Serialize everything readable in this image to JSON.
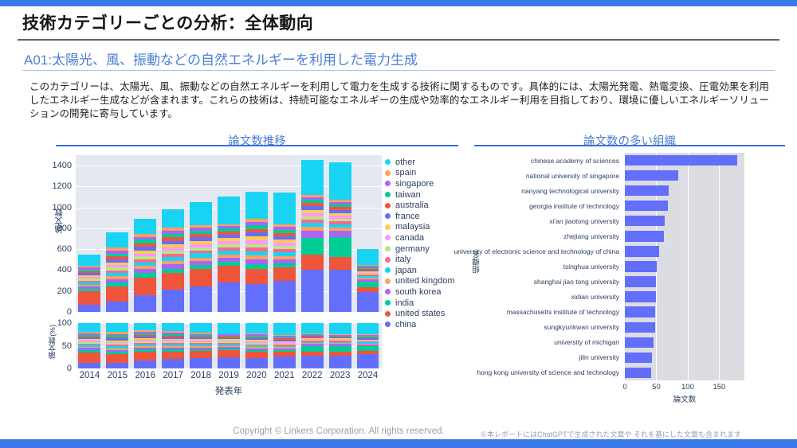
{
  "page": {
    "title": "技術カテゴリーごとの分析：全体動向",
    "section_heading": "A01:太陽光、風、振動などの自然エネルギーを利用した電力生成",
    "description": "このカテゴリーは、太陽光、風、振動などの自然エネルギーを利用して電力を生成する技術に関するものです。具体的には、太陽光発電、熱電変換、圧電効果を利用したエネルギー生成などが含まれます。これらの技術は、持続可能なエネルギーの生成や効率的なエネルギー利用を目指しており、環境に優しいエネルギーソリューションの開発に寄与しています。",
    "accent_color": "#3B79E9",
    "heading_color": "#4A7FD4"
  },
  "footer": {
    "copyright": "Copyright © Linkers Corporation. All rights reserved.",
    "note": "※本レポートにはChatGPTで生成された文章や それを基にした文章も含まれます"
  },
  "chart_data": [
    {
      "type": "bar",
      "mode": "stacked",
      "title": "論文数推移",
      "xlabel": "発表年",
      "ylabel": "論文数",
      "ylim": [
        0,
        1500
      ],
      "yticks": [
        0,
        200,
        400,
        600,
        800,
        1000,
        1200,
        1400
      ],
      "grid": true,
      "legend_position": "right",
      "categories": [
        "2014",
        "2015",
        "2016",
        "2017",
        "2018",
        "2019",
        "2020",
        "2021",
        "2022",
        "2023",
        "2024"
      ],
      "series": [
        {
          "name": "other",
          "color": "#19D3F3",
          "values": [
            105,
            150,
            140,
            170,
            225,
            265,
            260,
            300,
            335,
            355,
            150
          ]
        },
        {
          "name": "spain",
          "color": "#FFA15A",
          "values": [
            15,
            30,
            30,
            30,
            25,
            15,
            30,
            25,
            20,
            20,
            10
          ]
        },
        {
          "name": "singapore",
          "color": "#AB63FA",
          "values": [
            20,
            25,
            30,
            30,
            30,
            25,
            30,
            30,
            25,
            25,
            10
          ]
        },
        {
          "name": "taiwan",
          "color": "#00CC96",
          "values": [
            20,
            30,
            35,
            35,
            30,
            30,
            35,
            30,
            30,
            25,
            15
          ]
        },
        {
          "name": "australia",
          "color": "#EF553B",
          "values": [
            15,
            25,
            30,
            35,
            30,
            30,
            35,
            30,
            35,
            30,
            15
          ]
        },
        {
          "name": "france",
          "color": "#636EFA",
          "values": [
            20,
            30,
            35,
            35,
            35,
            30,
            40,
            35,
            35,
            30,
            15
          ]
        },
        {
          "name": "malaysia",
          "color": "#FECB52",
          "values": [
            15,
            25,
            30,
            30,
            30,
            30,
            35,
            30,
            30,
            25,
            10
          ]
        },
        {
          "name": "canada",
          "color": "#FF97FF",
          "values": [
            15,
            25,
            25,
            30,
            30,
            30,
            35,
            30,
            30,
            25,
            10
          ]
        },
        {
          "name": "germany",
          "color": "#B6E880",
          "values": [
            20,
            25,
            30,
            30,
            30,
            30,
            35,
            30,
            30,
            25,
            10
          ]
        },
        {
          "name": "italy",
          "color": "#FF6692",
          "values": [
            15,
            25,
            30,
            30,
            30,
            30,
            35,
            30,
            35,
            30,
            10
          ]
        },
        {
          "name": "japan",
          "color": "#19D3F3",
          "values": [
            25,
            35,
            35,
            40,
            40,
            40,
            40,
            35,
            35,
            30,
            15
          ]
        },
        {
          "name": "united kingdom",
          "color": "#FFA15A",
          "values": [
            15,
            25,
            30,
            30,
            30,
            30,
            35,
            30,
            35,
            30,
            15
          ]
        },
        {
          "name": "south korea",
          "color": "#AB63FA",
          "values": [
            25,
            35,
            40,
            40,
            40,
            40,
            45,
            40,
            70,
            65,
            25
          ]
        },
        {
          "name": "india",
          "color": "#00CC96",
          "values": [
            25,
            35,
            40,
            45,
            40,
            40,
            45,
            40,
            165,
            190,
            55
          ]
        },
        {
          "name": "united states",
          "color": "#EF553B",
          "values": [
            130,
            145,
            170,
            160,
            170,
            160,
            145,
            125,
            145,
            125,
            45
          ]
        },
        {
          "name": "china",
          "color": "#636EFA",
          "values": [
            65,
            100,
            160,
            210,
            240,
            280,
            270,
            300,
            400,
            400,
            190
          ]
        }
      ]
    },
    {
      "type": "bar",
      "mode": "stacked-percent",
      "title": "",
      "xlabel": "発表年",
      "ylabel": "論文数(%)",
      "ylim": [
        0,
        100
      ],
      "yticks": [
        0,
        50,
        100
      ],
      "derived_from": "論文数推移 (same series normalized to 100%)",
      "categories": [
        "2014",
        "2015",
        "2016",
        "2017",
        "2018",
        "2019",
        "2020",
        "2021",
        "2022",
        "2023",
        "2024"
      ]
    },
    {
      "type": "bar",
      "mode": "horizontal",
      "title": "論文数の多い組織",
      "xlabel": "論文数",
      "ylabel": "組織名",
      "xlim": [
        0,
        190
      ],
      "xticks": [
        0,
        50,
        100,
        150
      ],
      "bar_color": "#636EFA",
      "categories": [
        "chinese academy of sciences",
        "national university of singapore",
        "nanyang technological university",
        "georgia institute of technology",
        "xi'an jiaotong university",
        "zhejiang university",
        "university of electronic science and technology of china",
        "tsinghua university",
        "shanghai jiao tong university",
        "xidian university",
        "massachusetts institute of technology",
        "sungkyunkwan university",
        "university of michigan",
        "jilin university",
        "hong kong university of science and technology"
      ],
      "values": [
        178,
        85,
        70,
        68,
        63,
        62,
        54,
        51,
        50,
        49,
        48,
        48,
        45,
        43,
        42
      ]
    }
  ]
}
